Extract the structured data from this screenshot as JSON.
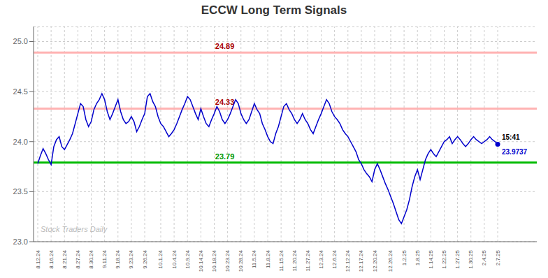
{
  "chart_data": {
    "type": "line",
    "title": "ECCW Long Term Signals",
    "color": "#0000cc",
    "grid": true,
    "ylim": [
      23.0,
      25.15
    ],
    "yticks": [
      {
        "value": 23.0,
        "label": "23.0"
      },
      {
        "value": 23.5,
        "label": "23.5"
      },
      {
        "value": 24.0,
        "label": "24.0"
      },
      {
        "value": 24.5,
        "label": "24.5"
      },
      {
        "value": 25.0,
        "label": "25.0"
      }
    ],
    "categories": [
      "8.12.24",
      null,
      null,
      null,
      null,
      "8.16.24",
      null,
      null,
      null,
      null,
      "8.21.24",
      null,
      null,
      null,
      null,
      "8.27.24",
      null,
      null,
      null,
      null,
      "8.30.24",
      null,
      null,
      null,
      null,
      "9.11.24",
      null,
      null,
      null,
      null,
      "9.18.24",
      null,
      null,
      null,
      null,
      "9.23.24",
      null,
      null,
      null,
      null,
      "9.26.24",
      null,
      null,
      null,
      null,
      null,
      "10.1.24",
      null,
      null,
      null,
      null,
      "10.4.24",
      null,
      null,
      null,
      null,
      "10.9.24",
      null,
      null,
      null,
      null,
      "10.14.24",
      null,
      null,
      null,
      null,
      "10.18.24",
      null,
      null,
      null,
      null,
      "10.23.24",
      null,
      null,
      null,
      null,
      "10.28.24",
      null,
      null,
      null,
      null,
      "11.5.24",
      null,
      null,
      null,
      null,
      "11.8.24",
      null,
      null,
      null,
      null,
      "11.15.24",
      null,
      null,
      null,
      null,
      "11.20.24",
      null,
      null,
      null,
      null,
      "11.27.24",
      null,
      null,
      null,
      null,
      "12.3.24",
      null,
      null,
      null,
      null,
      "12.6.24",
      null,
      null,
      null,
      null,
      "12.12.24",
      null,
      null,
      null,
      null,
      "12.17.24",
      null,
      null,
      null,
      null,
      "12.20.24",
      null,
      null,
      null,
      null,
      null,
      "12.26.24",
      null,
      null,
      null,
      null,
      "1.2.25",
      null,
      null,
      null,
      null,
      "1.8.25",
      null,
      null,
      null,
      null,
      "1.14.25",
      null,
      null,
      null,
      null,
      "1.22.25",
      null,
      null,
      null,
      null,
      "1.27.25",
      null,
      null,
      null,
      null,
      "1.30.25",
      null,
      null,
      null,
      null,
      "2.4.25",
      null,
      null,
      null,
      null,
      "2.7.25"
    ],
    "values": [
      23.78,
      23.86,
      23.93,
      23.88,
      23.82,
      23.77,
      23.95,
      24.02,
      24.05,
      23.95,
      23.92,
      23.97,
      24.02,
      24.08,
      24.18,
      24.28,
      24.38,
      24.35,
      24.22,
      24.15,
      24.2,
      24.32,
      24.38,
      24.42,
      24.48,
      24.42,
      24.3,
      24.22,
      24.28,
      24.35,
      24.42,
      24.3,
      24.22,
      24.18,
      24.2,
      24.25,
      24.2,
      24.1,
      24.15,
      24.22,
      24.28,
      24.45,
      24.48,
      24.4,
      24.35,
      24.25,
      24.18,
      24.15,
      24.1,
      24.05,
      24.08,
      24.12,
      24.18,
      24.25,
      24.32,
      24.38,
      24.45,
      24.42,
      24.35,
      24.28,
      24.22,
      24.33,
      24.25,
      24.18,
      24.15,
      24.22,
      24.28,
      24.35,
      24.3,
      24.22,
      24.18,
      24.22,
      24.28,
      24.35,
      24.42,
      24.38,
      24.28,
      24.22,
      24.18,
      24.22,
      24.3,
      24.38,
      24.32,
      24.28,
      24.18,
      24.12,
      24.05,
      24.0,
      23.98,
      24.08,
      24.15,
      24.25,
      24.35,
      24.38,
      24.32,
      24.28,
      24.22,
      24.18,
      24.22,
      24.28,
      24.22,
      24.18,
      24.12,
      24.08,
      24.15,
      24.22,
      24.28,
      24.35,
      24.42,
      24.38,
      24.3,
      24.25,
      24.22,
      24.18,
      24.12,
      24.08,
      24.05,
      24.0,
      23.95,
      23.9,
      23.82,
      23.78,
      23.72,
      23.68,
      23.65,
      23.6,
      23.72,
      23.78,
      23.72,
      23.65,
      23.58,
      23.52,
      23.45,
      23.38,
      23.3,
      23.22,
      23.18,
      23.25,
      23.32,
      23.42,
      23.55,
      23.65,
      23.72,
      23.62,
      23.72,
      23.82,
      23.88,
      23.92,
      23.88,
      23.85,
      23.9,
      23.95,
      24.0,
      24.02,
      24.05,
      23.98,
      24.02,
      24.05,
      24.02,
      23.98,
      23.95,
      23.98,
      24.02,
      24.05,
      24.02,
      24.0,
      23.98,
      24.0,
      24.02,
      24.05,
      24.02,
      24.0,
      23.9737
    ],
    "hlines": [
      {
        "value": 24.89,
        "color": "#ffb3b3",
        "label": "24.89",
        "label_color": "#aa0000"
      },
      {
        "value": 24.33,
        "color": "#ffb3b3",
        "label": "24.33",
        "label_color": "#aa0000"
      },
      {
        "value": 23.79,
        "color": "#00bb00",
        "label": "23.79",
        "label_color": "#009900"
      }
    ],
    "last_point": {
      "time_label": "15:41",
      "value_label": "23.9737",
      "color": "#0000cc"
    },
    "watermark": {
      "text": "Stock Traders Daily",
      "color": "#bbbbbb"
    }
  }
}
